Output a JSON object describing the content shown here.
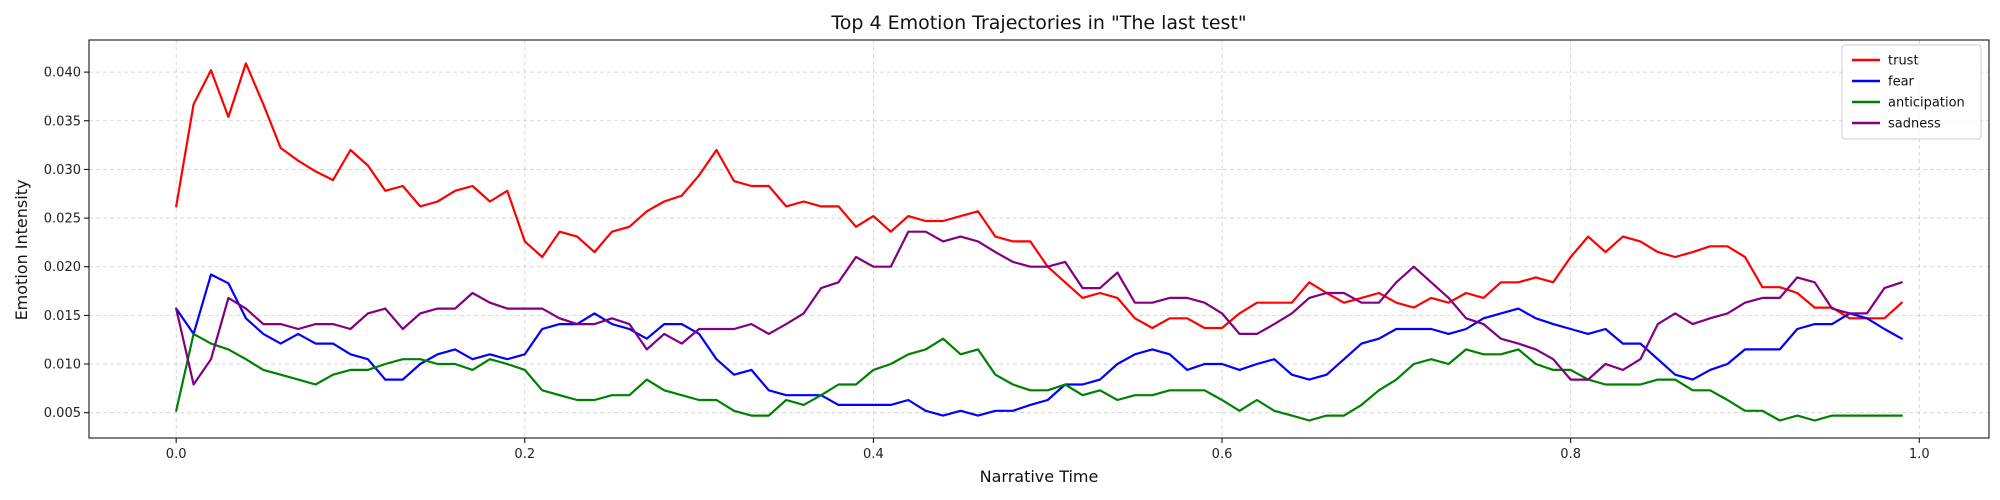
{
  "chart_data": {
    "type": "line",
    "title": "Top 4 Emotion Trajectories in \"The last test\"",
    "xlabel": "Narrative Time",
    "ylabel": "Emotion Intensity",
    "xlim": [
      -0.05,
      1.04
    ],
    "ylim": [
      0.0024,
      0.0433
    ],
    "xticks": [
      0.0,
      0.2,
      0.4,
      0.6,
      0.8,
      1.0
    ],
    "xtick_labels": [
      "0.0",
      "0.2",
      "0.4",
      "0.6",
      "0.8",
      "1.0"
    ],
    "yticks": [
      0.005,
      0.01,
      0.015,
      0.02,
      0.025,
      0.03,
      0.035,
      0.04
    ],
    "ytick_labels": [
      "0.005",
      "0.010",
      "0.015",
      "0.020",
      "0.025",
      "0.030",
      "0.035",
      "0.040"
    ],
    "grid": true,
    "legend_position": "top-right",
    "x": [
      0.0,
      0.01,
      0.02,
      0.03,
      0.04,
      0.05,
      0.06,
      0.07,
      0.08,
      0.09,
      0.1,
      0.11,
      0.12,
      0.13,
      0.14,
      0.15,
      0.16,
      0.17,
      0.18,
      0.19,
      0.2,
      0.21,
      0.22,
      0.23,
      0.24,
      0.25,
      0.26,
      0.27,
      0.28,
      0.29,
      0.3,
      0.31,
      0.32,
      0.33,
      0.34,
      0.35,
      0.36,
      0.37,
      0.38,
      0.39,
      0.4,
      0.41,
      0.42,
      0.43,
      0.44,
      0.45,
      0.46,
      0.47,
      0.48,
      0.49,
      0.5,
      0.51,
      0.52,
      0.53,
      0.54,
      0.55,
      0.56,
      0.57,
      0.58,
      0.59,
      0.6,
      0.61,
      0.62,
      0.63,
      0.64,
      0.65,
      0.66,
      0.67,
      0.68,
      0.69,
      0.7,
      0.71,
      0.72,
      0.73,
      0.74,
      0.75,
      0.76,
      0.77,
      0.78,
      0.79,
      0.8,
      0.81,
      0.82,
      0.83,
      0.84,
      0.85,
      0.86,
      0.87,
      0.88,
      0.89,
      0.9,
      0.91,
      0.92,
      0.93,
      0.94,
      0.95,
      0.96,
      0.97,
      0.98,
      0.99
    ],
    "series": [
      {
        "name": "trust",
        "color": "#ff0000",
        "values": [
          0.0262,
          0.0367,
          0.0402,
          0.0354,
          0.0409,
          0.0367,
          0.0322,
          0.0309,
          0.0298,
          0.0289,
          0.032,
          0.0304,
          0.0278,
          0.0283,
          0.0262,
          0.0267,
          0.0278,
          0.0283,
          0.0267,
          0.0278,
          0.0226,
          0.021,
          0.0236,
          0.0231,
          0.0215,
          0.0236,
          0.0241,
          0.0257,
          0.0267,
          0.0273,
          0.0294,
          0.032,
          0.0288,
          0.0283,
          0.0283,
          0.0262,
          0.0267,
          0.0262,
          0.0262,
          0.0241,
          0.0252,
          0.0236,
          0.0252,
          0.0247,
          0.0247,
          0.0252,
          0.0257,
          0.0231,
          0.0226,
          0.0226,
          0.02,
          0.0184,
          0.0168,
          0.0173,
          0.0168,
          0.0147,
          0.0137,
          0.0147,
          0.0147,
          0.0137,
          0.0137,
          0.0152,
          0.0163,
          0.0163,
          0.0163,
          0.0184,
          0.0173,
          0.0163,
          0.0168,
          0.0173,
          0.0163,
          0.0158,
          0.0168,
          0.0163,
          0.0173,
          0.0168,
          0.0184,
          0.0184,
          0.0189,
          0.0184,
          0.021,
          0.0231,
          0.0215,
          0.0231,
          0.0226,
          0.0215,
          0.021,
          0.0215,
          0.0221,
          0.0221,
          0.021,
          0.0179,
          0.0179,
          0.0173,
          0.0158,
          0.0158,
          0.0147,
          0.0147,
          0.0147,
          0.0163
        ]
      },
      {
        "name": "fear",
        "color": "#0000ff",
        "values": [
          0.0157,
          0.0131,
          0.0192,
          0.0183,
          0.0147,
          0.0131,
          0.0121,
          0.0131,
          0.0121,
          0.0121,
          0.011,
          0.0105,
          0.0084,
          0.0084,
          0.01,
          0.011,
          0.0115,
          0.0105,
          0.011,
          0.0105,
          0.011,
          0.0136,
          0.0141,
          0.0141,
          0.0152,
          0.0141,
          0.0136,
          0.0126,
          0.0141,
          0.0141,
          0.0131,
          0.0105,
          0.0089,
          0.0094,
          0.0073,
          0.0068,
          0.0068,
          0.0068,
          0.0058,
          0.0058,
          0.0058,
          0.0058,
          0.0063,
          0.0052,
          0.0047,
          0.0052,
          0.0047,
          0.0052,
          0.0052,
          0.0058,
          0.0063,
          0.0079,
          0.0079,
          0.0084,
          0.01,
          0.011,
          0.0115,
          0.011,
          0.0094,
          0.01,
          0.01,
          0.0094,
          0.01,
          0.0105,
          0.0089,
          0.0084,
          0.0089,
          0.0105,
          0.0121,
          0.0126,
          0.0136,
          0.0136,
          0.0136,
          0.0131,
          0.0136,
          0.0147,
          0.0152,
          0.0157,
          0.0147,
          0.0141,
          0.0136,
          0.0131,
          0.0136,
          0.0121,
          0.0121,
          0.0105,
          0.0089,
          0.0084,
          0.0094,
          0.01,
          0.0115,
          0.0115,
          0.0115,
          0.0136,
          0.0141,
          0.0141,
          0.0152,
          0.0147,
          0.0136,
          0.0126
        ]
      },
      {
        "name": "anticipation",
        "color": "#008000",
        "values": [
          0.0052,
          0.0131,
          0.0121,
          0.0115,
          0.0105,
          0.0094,
          0.0089,
          0.0084,
          0.0079,
          0.0089,
          0.0094,
          0.0094,
          0.01,
          0.0105,
          0.0105,
          0.01,
          0.01,
          0.0094,
          0.0105,
          0.01,
          0.0094,
          0.0073,
          0.0068,
          0.0063,
          0.0063,
          0.0068,
          0.0068,
          0.0084,
          0.0073,
          0.0068,
          0.0063,
          0.0063,
          0.0052,
          0.0047,
          0.0047,
          0.0063,
          0.0058,
          0.0068,
          0.0079,
          0.0079,
          0.0094,
          0.01,
          0.011,
          0.0115,
          0.0126,
          0.011,
          0.0115,
          0.0089,
          0.0079,
          0.0073,
          0.0073,
          0.0079,
          0.0068,
          0.0073,
          0.0063,
          0.0068,
          0.0068,
          0.0073,
          0.0073,
          0.0073,
          0.0063,
          0.0052,
          0.0063,
          0.0052,
          0.0047,
          0.0042,
          0.0047,
          0.0047,
          0.0058,
          0.0073,
          0.0084,
          0.01,
          0.0105,
          0.01,
          0.0115,
          0.011,
          0.011,
          0.0115,
          0.01,
          0.0094,
          0.0094,
          0.0084,
          0.0079,
          0.0079,
          0.0079,
          0.0084,
          0.0084,
          0.0073,
          0.0073,
          0.0063,
          0.0052,
          0.0052,
          0.0042,
          0.0047,
          0.0042,
          0.0047,
          0.0047,
          0.0047,
          0.0047,
          0.0047
        ]
      },
      {
        "name": "sadness",
        "color": "#800080",
        "values": [
          0.0157,
          0.0079,
          0.0105,
          0.0168,
          0.0157,
          0.0141,
          0.0141,
          0.0136,
          0.0141,
          0.0141,
          0.0136,
          0.0152,
          0.0157,
          0.0136,
          0.0152,
          0.0157,
          0.0157,
          0.0173,
          0.0163,
          0.0157,
          0.0157,
          0.0157,
          0.0147,
          0.0141,
          0.0141,
          0.0147,
          0.0141,
          0.0115,
          0.0131,
          0.0121,
          0.0136,
          0.0136,
          0.0136,
          0.0141,
          0.0131,
          0.0141,
          0.0152,
          0.0178,
          0.0184,
          0.021,
          0.02,
          0.02,
          0.0236,
          0.0236,
          0.0226,
          0.0231,
          0.0226,
          0.0215,
          0.0205,
          0.02,
          0.02,
          0.0205,
          0.0178,
          0.0178,
          0.0194,
          0.0163,
          0.0163,
          0.0168,
          0.0168,
          0.0163,
          0.0152,
          0.0131,
          0.0131,
          0.0141,
          0.0152,
          0.0168,
          0.0173,
          0.0173,
          0.0163,
          0.0163,
          0.0184,
          0.02,
          0.0184,
          0.0168,
          0.0147,
          0.0141,
          0.0126,
          0.0121,
          0.0115,
          0.0105,
          0.0084,
          0.0084,
          0.01,
          0.0094,
          0.0105,
          0.0141,
          0.0152,
          0.0141,
          0.0147,
          0.0152,
          0.0163,
          0.0168,
          0.0168,
          0.0189,
          0.0184,
          0.0157,
          0.0152,
          0.0152,
          0.0178,
          0.0184
        ]
      }
    ]
  }
}
